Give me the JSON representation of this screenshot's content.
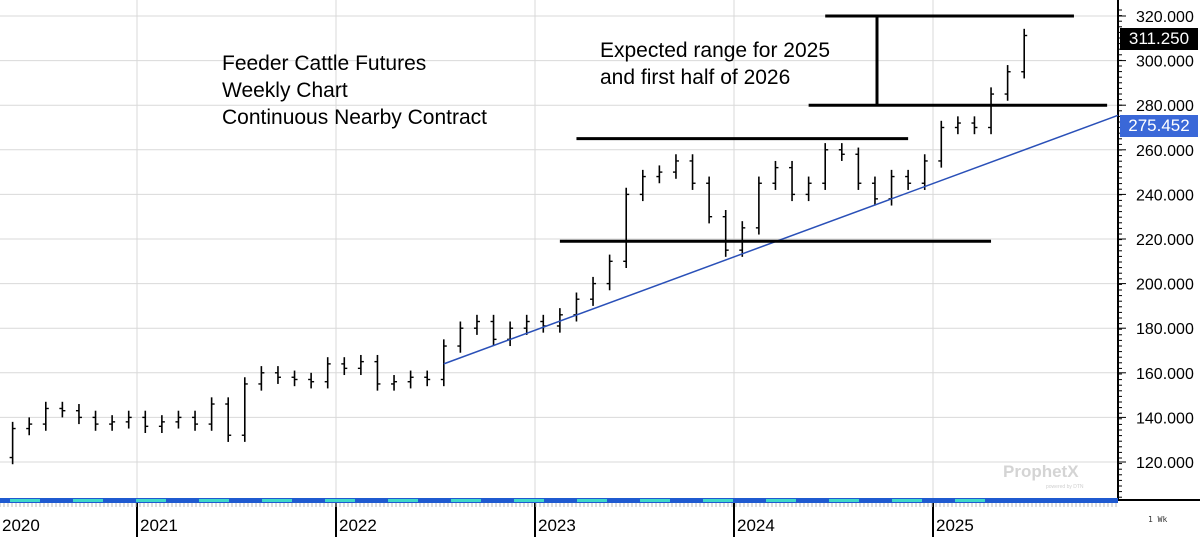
{
  "chart_data": {
    "type": "bar",
    "subtype": "ohlc-price-bars",
    "annotations": {
      "title_lines": [
        "Feeder Cattle Futures",
        "Weekly Chart",
        "Continuous Nearby Contract"
      ],
      "range_note_lines": [
        "Expected range for 2025",
        "and first half of 2026"
      ]
    },
    "x_tick_labels": [
      "2020",
      "2021",
      "2022",
      "2023",
      "2024",
      "2025"
    ],
    "y_tick_labels": [
      "120.000",
      "140.000",
      "160.000",
      "180.000",
      "200.000",
      "220.000",
      "240.000",
      "260.000",
      "280.000",
      "300.000",
      "320.000"
    ],
    "ylim": [
      110,
      325
    ],
    "grid": true,
    "interval_label": "1 Wk",
    "last_price": "311.250",
    "trendline_price": "275.452",
    "colors": {
      "bars": "#000000",
      "trendline": "#2a50b8",
      "last_price_bg": "#000000",
      "trendline_bg": "#3a68d8",
      "grid": "#d9d9d9"
    },
    "series": [
      {
        "dates": [
          "2020-04",
          "2020-05",
          "2020-06",
          "2020-07",
          "2020-08",
          "2020-09",
          "2020-10",
          "2020-11",
          "2020-12",
          "2021-01",
          "2021-02",
          "2021-03",
          "2021-04",
          "2021-05",
          "2021-06",
          "2021-07",
          "2021-08",
          "2021-09",
          "2021-10",
          "2021-11",
          "2021-12",
          "2022-01",
          "2022-02",
          "2022-03",
          "2022-04",
          "2022-05",
          "2022-06",
          "2022-07",
          "2022-08",
          "2022-09",
          "2022-10",
          "2022-11",
          "2022-12",
          "2023-01",
          "2023-02",
          "2023-03",
          "2023-04",
          "2023-05",
          "2023-06",
          "2023-07",
          "2023-08",
          "2023-09",
          "2023-10",
          "2023-11",
          "2023-12",
          "2024-01",
          "2024-02",
          "2024-03",
          "2024-04",
          "2024-05",
          "2024-06",
          "2024-07",
          "2024-08",
          "2024-09",
          "2024-10",
          "2024-11",
          "2024-12",
          "2025-01",
          "2025-02",
          "2025-03",
          "2025-04",
          "2025-05",
          "2025-06"
        ],
        "close": [
          122,
          135,
          137,
          144,
          143,
          140,
          137,
          138,
          140,
          136,
          138,
          140,
          137,
          146,
          132,
          155,
          160,
          158,
          157,
          156,
          164,
          162,
          165,
          155,
          156,
          158,
          157,
          172,
          180,
          183,
          175,
          180,
          183,
          181,
          186,
          193,
          200,
          210,
          240,
          248,
          250,
          255,
          245,
          230,
          215,
          225,
          245,
          252,
          240,
          245,
          260,
          258,
          245,
          238,
          248,
          245,
          255,
          270,
          272,
          270,
          285,
          295,
          311.25
        ]
      }
    ],
    "trendline": {
      "start": {
        "date": "2022-07",
        "value": 164
      },
      "end_value": 275.452
    },
    "horizontal_levels": [
      {
        "value": 320,
        "from": "2024-06",
        "to": "2025-09"
      },
      {
        "value": 280,
        "from": "2024-05",
        "to": "2025-11"
      },
      {
        "value": 265,
        "from": "2023-03",
        "to": "2024-11"
      },
      {
        "value": 219,
        "from": "2023-02",
        "to": "2025-04"
      }
    ]
  },
  "branding": {
    "logo": "ProphetX",
    "logo_sub": "powered by DTN"
  }
}
